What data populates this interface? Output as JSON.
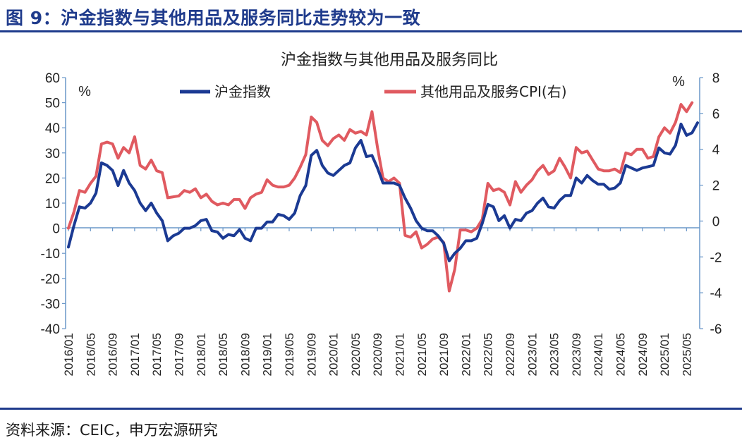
{
  "figure_title": "图 9：沪金指数与其他用品及服务同比走势较为一致",
  "source": "资料来源：CEIC，申万宏源研究",
  "colors": {
    "series1": "#1b3a93",
    "series2": "#e05a60",
    "axis": "#6a97c9",
    "header": "#1f3b8c"
  },
  "chart_data": {
    "type": "line",
    "title": "沪金指数与其他用品及服务同比",
    "left_unit": "%",
    "right_unit": "%",
    "ylim_left": [
      -40,
      60
    ],
    "ylim_right": [
      -6,
      8
    ],
    "yticks_left": [
      60,
      50,
      40,
      30,
      20,
      10,
      0,
      -10,
      -20,
      -30,
      -40
    ],
    "yticks_right": [
      8,
      6,
      4,
      2,
      0,
      -2,
      -4,
      -6
    ],
    "x_labels": [
      "2016/01",
      "2016/05",
      "2016/09",
      "2017/01",
      "2017/05",
      "2017/09",
      "2018/01",
      "2018/05",
      "2018/09",
      "2019/01",
      "2019/05",
      "2019/09",
      "2020/01",
      "2020/05",
      "2020/09",
      "2021/01",
      "2021/05",
      "2021/09",
      "2022/01",
      "2022/05",
      "2022/09",
      "2023/01",
      "2023/05",
      "2023/09",
      "2024/01",
      "2024/05",
      "2024/09",
      "2025/01",
      "2025/05"
    ],
    "grid": false,
    "legend_position": "top",
    "series": [
      {
        "name": "沪金指数",
        "axis": "left",
        "values": [
          -7.5,
          1,
          8.5,
          8,
          10,
          14,
          26,
          25,
          23,
          17,
          23,
          18,
          15,
          10,
          7,
          10,
          6,
          3,
          -5,
          -3,
          -2,
          0,
          0,
          1,
          3,
          3.5,
          -1,
          -1.5,
          -4,
          -2.5,
          -3,
          -0.5,
          -4,
          -5,
          0,
          0,
          2.5,
          2.5,
          5.5,
          5,
          3.5,
          6,
          13,
          17,
          29,
          31,
          25,
          22,
          21,
          23,
          25,
          26,
          32,
          35,
          28.5,
          29,
          24,
          18,
          18,
          18,
          17,
          12,
          8,
          3,
          0,
          -1,
          -1,
          -3,
          -6,
          -13,
          -10,
          -8,
          -5,
          -5,
          -4,
          2,
          9.5,
          8.5,
          3,
          5,
          0,
          3.5,
          3,
          6,
          7,
          10,
          12,
          8.5,
          8,
          11,
          13,
          13,
          20,
          18,
          21,
          19,
          17.5,
          17.5,
          15.5,
          16,
          18,
          25,
          24,
          23,
          24,
          24.5,
          25,
          32,
          30,
          29.5,
          33,
          41.5,
          37,
          38,
          42
        ]
      },
      {
        "name": "其他用品及服务CPI(右)",
        "axis": "right",
        "values": [
          -0.4,
          0.5,
          1.7,
          1.6,
          2.1,
          2.5,
          4.3,
          4.4,
          4.3,
          3.5,
          4.1,
          3.8,
          4.7,
          3.1,
          2.9,
          3.4,
          2.8,
          2.7,
          1.3,
          1.35,
          1.4,
          1.7,
          1.6,
          1.8,
          1.3,
          1.5,
          1.1,
          0.9,
          1,
          0.9,
          1.2,
          1.2,
          0.7,
          1.3,
          1.5,
          1.6,
          2.3,
          2,
          1.9,
          1.9,
          2,
          2.4,
          3,
          3.7,
          5.8,
          5.5,
          4.5,
          4.2,
          4.6,
          4.8,
          4.5,
          5.1,
          4.9,
          5,
          4.8,
          6.1,
          4.1,
          2.4,
          2.2,
          2.4,
          2.1,
          -0.8,
          -0.9,
          -0.6,
          -1.5,
          -1.3,
          -1,
          -0.9,
          -1.2,
          -3.9,
          -2.7,
          -0.5,
          -0.5,
          -0.6,
          -0.4,
          0.1,
          2.1,
          1.7,
          1.8,
          1.6,
          0.9,
          2.2,
          1.6,
          2,
          2.3,
          2.8,
          3.1,
          2.6,
          2.8,
          3.5,
          3,
          2.4,
          4.1,
          3.8,
          3.9,
          3.4,
          2.9,
          2.8,
          2.8,
          2.9,
          2.7,
          3.8,
          3.7,
          4,
          4,
          3.5,
          3.6,
          4.7,
          5.2,
          4.9,
          5.5,
          6.5,
          6.1,
          6.6
        ]
      }
    ]
  }
}
